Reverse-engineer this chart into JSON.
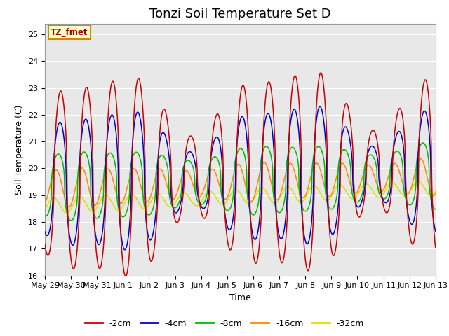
{
  "title": "Tonzi Soil Temperature Set D",
  "xlabel": "Time",
  "ylabel": "Soil Temperature (C)",
  "annotation": "TZ_fmet",
  "ylim": [
    16.0,
    25.4
  ],
  "yticks": [
    16.0,
    17.0,
    18.0,
    19.0,
    20.0,
    21.0,
    22.0,
    23.0,
    24.0,
    25.0
  ],
  "colors": {
    "-2cm": "#cc0000",
    "-4cm": "#0000cc",
    "-8cm": "#00bb00",
    "-16cm": "#ff8800",
    "-32cm": "#dddd00"
  },
  "legend_labels": [
    "-2cm",
    "-4cm",
    "-8cm",
    "-16cm",
    "-32cm"
  ],
  "xtick_labels": [
    "May 29",
    "May 30",
    "May 31",
    "Jun 1",
    "Jun 2",
    "Jun 3",
    "Jun 4",
    "Jun 5",
    "Jun 6",
    "Jun 7",
    "Jun 8",
    "Jun 9",
    "Jun 10",
    "Jun 11",
    "Jun 12",
    "Jun 13"
  ],
  "n_days": 15,
  "figure_bg": "#ffffff",
  "plot_bg_color": "#e8e8e8",
  "title_fontsize": 13,
  "axis_label_fontsize": 9,
  "tick_fontsize": 8,
  "legend_fontsize": 9
}
